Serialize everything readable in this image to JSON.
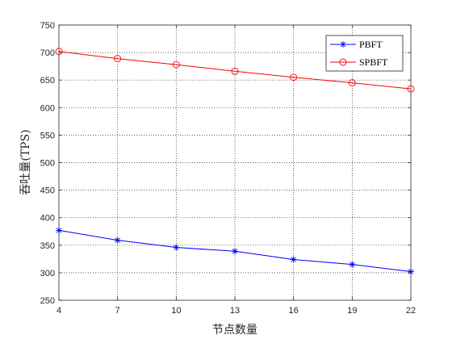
{
  "chart_data": {
    "type": "line",
    "x": [
      4,
      7,
      10,
      13,
      16,
      19,
      22
    ],
    "xlabel": "节点数量",
    "ylabel": "吞吐量(TPS)",
    "xlim": [
      4,
      22
    ],
    "ylim": [
      250,
      750
    ],
    "xticks": [
      "4",
      "7",
      "10",
      "13",
      "16",
      "19",
      "22"
    ],
    "yticks": [
      "250",
      "300",
      "350",
      "400",
      "450",
      "500",
      "550",
      "600",
      "650",
      "700",
      "750"
    ],
    "grid": true,
    "legend_position": "top-right",
    "series": [
      {
        "name": "PBFT",
        "color": "#0000ff",
        "marker": "asterisk",
        "values": [
          377,
          359,
          346,
          339,
          324,
          315,
          302
        ]
      },
      {
        "name": "SPBFT",
        "color": "#ff0000",
        "marker": "circle",
        "values": [
          702,
          689,
          678,
          666,
          655,
          645,
          634
        ]
      }
    ]
  }
}
